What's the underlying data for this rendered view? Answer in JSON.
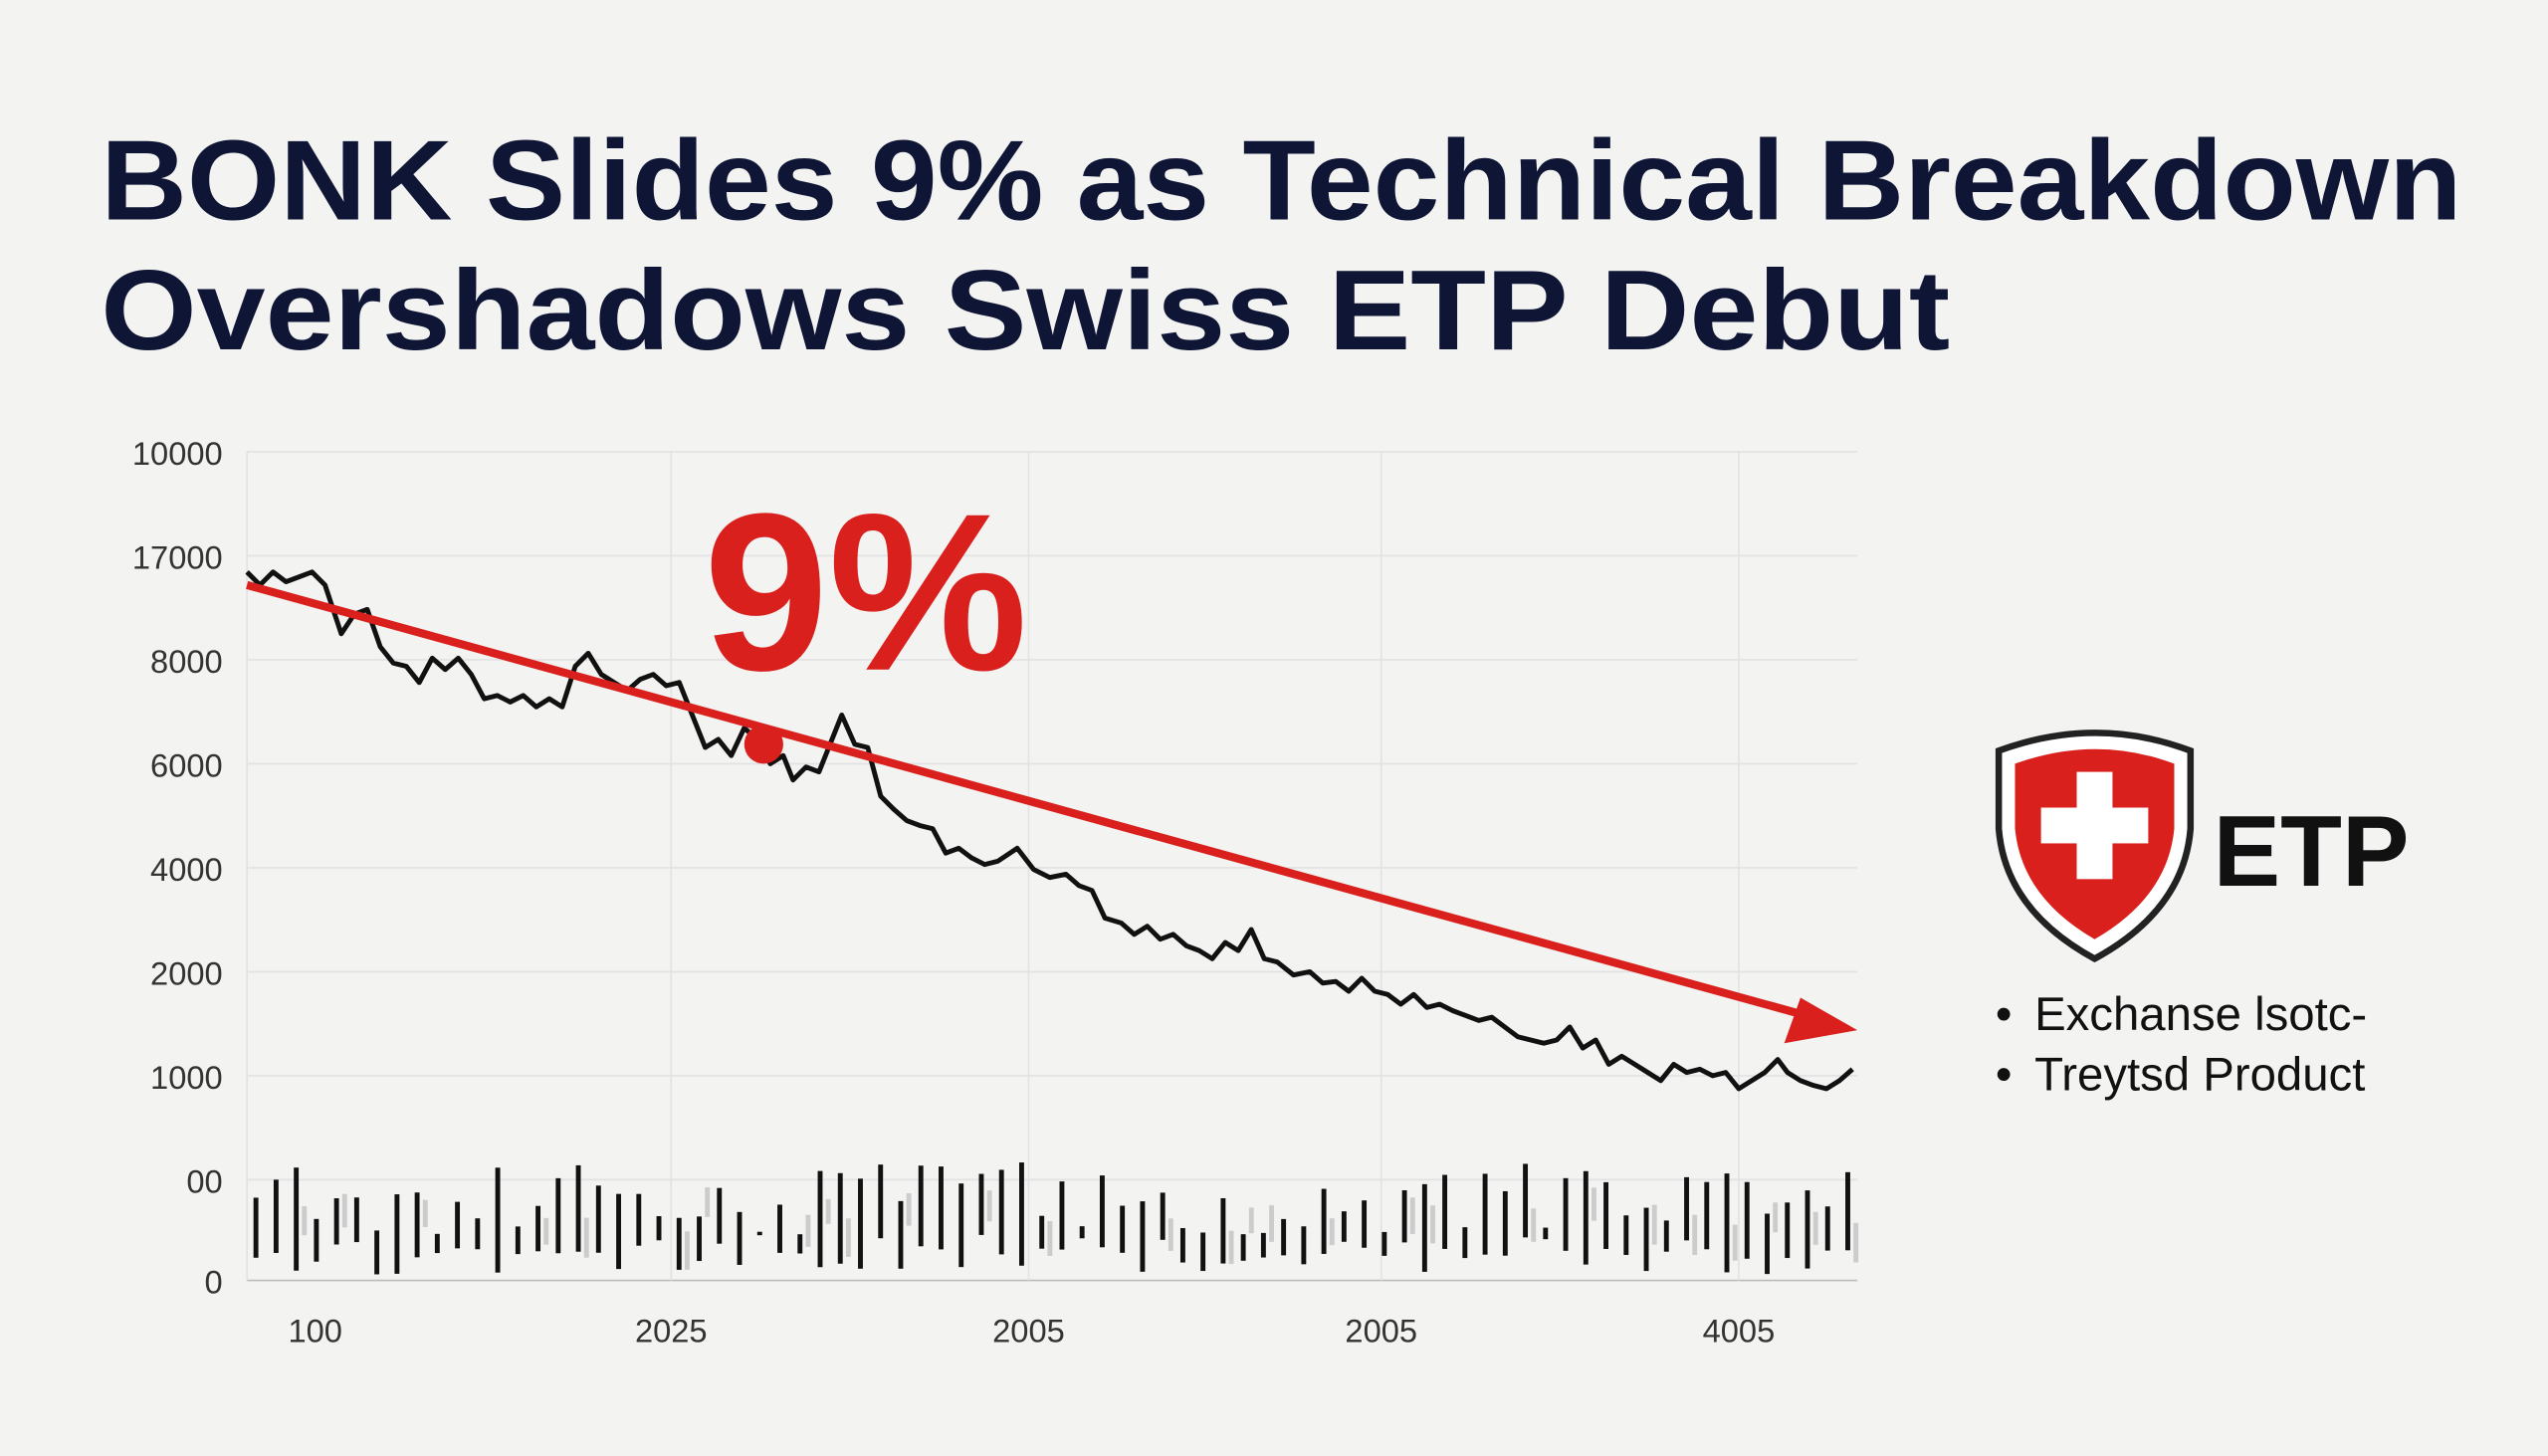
{
  "header": {
    "title_lines": [
      "BONK Slides 9% as Technical Breakdown",
      "Overshadows Swiss ETP Debut"
    ]
  },
  "chart": {
    "y_axis_labels": [
      "10000",
      "17000",
      "8000",
      "6000",
      "4000",
      "2000",
      "1000",
      "00",
      "0"
    ],
    "x_axis_labels": [
      "100",
      "2025",
      "2005",
      "2005",
      "4005"
    ],
    "callout": "9%"
  },
  "badge": {
    "label": "ETP",
    "bullets": [
      "Exchanse lsotc-",
      "Treytsd Product"
    ]
  }
}
